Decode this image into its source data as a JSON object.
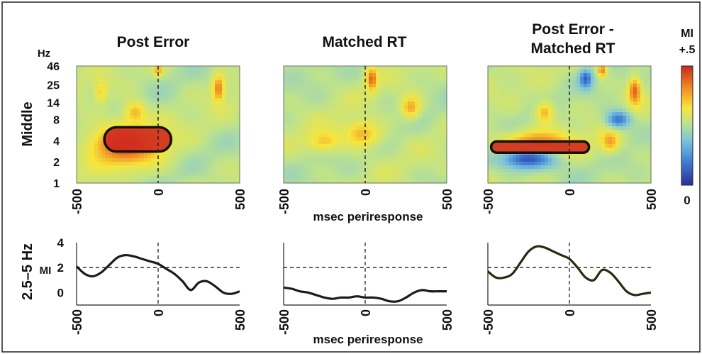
{
  "colors": {
    "line": "#1c1c1c",
    "line_diff": "#2a2a10",
    "dashed": "#222222",
    "colormap": [
      "#2d2d95",
      "#3f7fd4",
      "#7ec6dc",
      "#bfe38a",
      "#f7e63a",
      "#f08a24",
      "#c8281c"
    ]
  },
  "figure": {
    "colorbar": {
      "title": "MI",
      "top_label": "+.5",
      "bottom_label": "0"
    },
    "row_labels": {
      "top": "Middle",
      "bottom": "2.5–5 Hz"
    },
    "heatmap_y_unit": "Hz",
    "mi_axis_label": "MI",
    "x_axis_label": "msec periresponse"
  },
  "chart_data": [
    {
      "type": "heatmap",
      "title": "Post Error",
      "x_ticks": [
        "-500",
        "0",
        "500"
      ],
      "y_ticks": [
        "46",
        "25",
        "14",
        "8",
        "4",
        "2",
        "1"
      ],
      "xlim": [
        -500,
        500
      ],
      "ylim_hz": [
        1,
        46
      ],
      "y_scale": "log",
      "hotspots": [
        {
          "x": -200,
          "hz": 3.5,
          "level": 0.95,
          "rx": 220,
          "ry": 0.18
        },
        {
          "x": -140,
          "hz": 10,
          "level": 0.75,
          "rx": 70,
          "ry": 0.1
        },
        {
          "x": 370,
          "hz": 22,
          "level": 0.85,
          "rx": 40,
          "ry": 0.12
        },
        {
          "x": -350,
          "hz": 20,
          "level": 0.7,
          "rx": 40,
          "ry": 0.1
        },
        {
          "x": 0,
          "hz": 40,
          "level": 0.8,
          "rx": 25,
          "ry": 0.05
        }
      ],
      "significant_cluster": {
        "x_range": [
          -330,
          80
        ],
        "hz_range": [
          2.8,
          6.2
        ]
      },
      "dashed_x": 0
    },
    {
      "type": "heatmap",
      "title": "Matched RT",
      "x_ticks": [
        "-500",
        "0",
        "500"
      ],
      "xlim": [
        -500,
        500
      ],
      "hotspots": [
        {
          "x": 40,
          "hz": 30,
          "level": 0.9,
          "rx": 35,
          "ry": 0.1
        },
        {
          "x": -20,
          "hz": 5,
          "level": 0.75,
          "rx": 120,
          "ry": 0.12
        },
        {
          "x": 280,
          "hz": 12,
          "level": 0.78,
          "rx": 60,
          "ry": 0.1
        },
        {
          "x": -250,
          "hz": 4,
          "level": 0.72,
          "rx": 110,
          "ry": 0.1
        }
      ],
      "dashed_x": 0
    },
    {
      "type": "heatmap",
      "title": "Post Error - Matched RT",
      "x_ticks": [
        "-500",
        "0",
        "500"
      ],
      "xlim": [
        -500,
        500
      ],
      "hotspots": [
        {
          "x": -200,
          "hz": 3.3,
          "level": 0.97,
          "rx": 230,
          "ry": 0.12
        },
        {
          "x": 400,
          "hz": 20,
          "level": 0.9,
          "rx": 40,
          "ry": 0.12
        },
        {
          "x": 200,
          "hz": 40,
          "level": 0.85,
          "rx": 30,
          "ry": 0.06
        },
        {
          "x": -150,
          "hz": 10,
          "level": 0.75,
          "rx": 60,
          "ry": 0.1
        },
        {
          "x": 250,
          "hz": 4,
          "level": 0.8,
          "rx": 60,
          "ry": 0.1
        }
      ],
      "coldspots": [
        {
          "x": -250,
          "hz": 2.2,
          "level": 0.08,
          "rx": 200,
          "ry": 0.1
        },
        {
          "x": 100,
          "hz": 30,
          "level": 0.1,
          "rx": 40,
          "ry": 0.08
        },
        {
          "x": 300,
          "hz": 8,
          "level": 0.15,
          "rx": 80,
          "ry": 0.08
        }
      ],
      "significant_cluster": {
        "x_range": [
          -480,
          120
        ],
        "hz_range": [
          2.7,
          3.9
        ]
      },
      "dashed_x": 0
    },
    {
      "type": "line",
      "name": "Post Error",
      "y_ticks": [
        "4",
        "2",
        "0"
      ],
      "x_ticks": [
        "-500",
        "0",
        "500"
      ],
      "xlim": [
        -500,
        500
      ],
      "ylim": [
        -1,
        4
      ],
      "threshold": 2,
      "x": [
        -500,
        -450,
        -400,
        -350,
        -300,
        -250,
        -200,
        -150,
        -100,
        -50,
        0,
        50,
        100,
        150,
        200,
        250,
        300,
        350,
        400,
        450,
        500
      ],
      "y": [
        2.1,
        1.5,
        1.3,
        1.6,
        2.2,
        2.8,
        3.0,
        2.9,
        2.7,
        2.5,
        2.3,
        1.9,
        1.5,
        0.9,
        0.2,
        0.8,
        0.9,
        0.5,
        0.0,
        -0.1,
        0.1
      ]
    },
    {
      "type": "line",
      "name": "Matched RT",
      "x_ticks": [
        "-500",
        "0",
        "500"
      ],
      "xlim": [
        -500,
        500
      ],
      "ylim": [
        -1,
        4
      ],
      "threshold": 2,
      "x": [
        -500,
        -450,
        -400,
        -350,
        -300,
        -250,
        -200,
        -150,
        -100,
        -50,
        0,
        50,
        100,
        150,
        200,
        250,
        300,
        350,
        400,
        450,
        500
      ],
      "y": [
        0.4,
        0.3,
        0.1,
        0.0,
        -0.2,
        -0.4,
        -0.5,
        -0.4,
        -0.4,
        -0.3,
        -0.4,
        -0.4,
        -0.5,
        -0.7,
        -0.7,
        -0.4,
        0.0,
        0.2,
        0.1,
        0.1,
        0.1
      ]
    },
    {
      "type": "line",
      "name": "Post Error - Matched RT",
      "x_ticks": [
        "-500",
        "0",
        "500"
      ],
      "xlim": [
        -500,
        500
      ],
      "ylim": [
        -1,
        4
      ],
      "threshold": 2,
      "x": [
        -500,
        -450,
        -400,
        -350,
        -300,
        -250,
        -200,
        -150,
        -100,
        -50,
        0,
        50,
        100,
        150,
        200,
        250,
        300,
        350,
        400,
        450,
        500
      ],
      "y": [
        1.7,
        1.2,
        1.2,
        1.5,
        2.4,
        3.3,
        3.7,
        3.6,
        3.3,
        3.0,
        2.7,
        2.0,
        1.2,
        1.0,
        1.8,
        1.6,
        0.9,
        0.1,
        -0.2,
        -0.1,
        0.0
      ]
    }
  ]
}
